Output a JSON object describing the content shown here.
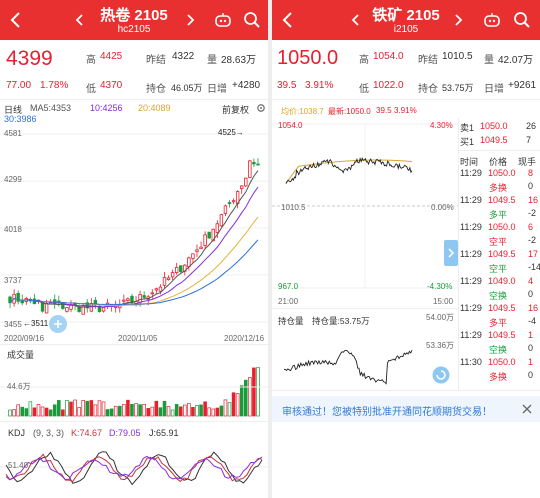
{
  "left": {
    "header": {
      "title": "热卷 2105",
      "code": "hc2105"
    },
    "quote": {
      "price": "4399",
      "change": "77.00",
      "change_pct": "1.78%",
      "high_label": "高",
      "high": "4425",
      "prev_settle_label": "昨结",
      "prev_settle": "4322",
      "volume_label": "量",
      "volume": "28.63万",
      "low_label": "低",
      "low": "4370",
      "oi_label": "持仓",
      "oi": "46.05万",
      "day_inc_label": "日增",
      "day_inc": "+4280"
    },
    "kline_bar": {
      "period": "日线",
      "ma5": "MA5:4353",
      "ma10": "10:4256",
      "ma20": "20:4089",
      "ma30": "30:3986",
      "adjust": "前复权"
    },
    "price_axis": [
      "4581",
      "4299",
      "4018",
      "3737",
      "3455"
    ],
    "annotations": {
      "high": "4525→",
      "low": "←3511"
    },
    "dates": [
      "2020/09/16",
      "2020/11/05",
      "2020/12/16"
    ],
    "volume": {
      "title": "成交量",
      "level": "44.6万"
    },
    "kdj": {
      "name": "KDJ",
      "params": "(9, 3, 3)",
      "k": "K:74.67",
      "d": "D:79.05",
      "j": "J:65.91",
      "level": "51.40"
    },
    "colors": {
      "up": "#e6202f",
      "down": "#1a9b3a",
      "ma5": "#555555",
      "ma10": "#8a2be2",
      "ma20": "#e5b43c",
      "ma30": "#2f6fdb"
    },
    "icons": [
      "back-icon",
      "prev-icon",
      "next-icon",
      "robot-icon",
      "search-icon",
      "settings-icon"
    ]
  },
  "right": {
    "header": {
      "title": "铁矿 2105",
      "code": "i2105"
    },
    "quote": {
      "price": "1050.0",
      "change": "39.5",
      "change_pct": "3.91%",
      "high_label": "高",
      "high": "1054.0",
      "prev_settle_label": "昨结",
      "prev_settle": "1010.5",
      "volume_label": "量",
      "volume": "42.07万",
      "low_label": "低",
      "low": "1022.0",
      "oi_label": "持仓",
      "oi": "53.75万",
      "day_inc_label": "日增",
      "day_inc": "+9261"
    },
    "intraday_bar": {
      "avg": "均价:1038.7",
      "latest": "最新:1050.0",
      "chg": "39.5",
      "pct": "3.91%"
    },
    "price_axis": {
      "top": "1054.0",
      "mid": "1010.5",
      "bottom": "967.0"
    },
    "pct_axis": {
      "top": "4.30%",
      "mid": "0.00%",
      "bottom": "-4.30%"
    },
    "time_axis": {
      "start": "21:00",
      "end": "15:00"
    },
    "oi_chart": {
      "label1": "持仓量",
      "label2": "持仓量:53.75万",
      "top": "54.00万",
      "bottom": "53.36万"
    },
    "order_book": [
      {
        "label": "卖1",
        "price": "1050.0",
        "qty": "26"
      },
      {
        "label": "买1",
        "price": "1049.5",
        "qty": "7"
      }
    ],
    "trades_header": {
      "time": "时间",
      "price": "价格",
      "volume": "现手"
    },
    "trades": [
      {
        "time": "11:29",
        "price": "1050.0",
        "vol": "8",
        "type": "多换",
        "change": "0",
        "price_color": "red",
        "type_color": "red"
      },
      {
        "time": "11:29",
        "price": "1049.5",
        "vol": "16",
        "type": "多平",
        "change": "-2",
        "price_color": "red",
        "type_color": "green"
      },
      {
        "time": "11:29",
        "price": "1050.0",
        "vol": "6",
        "type": "空平",
        "change": "-2",
        "price_color": "red",
        "type_color": "red"
      },
      {
        "time": "11:29",
        "price": "1049.5",
        "vol": "17",
        "type": "空平",
        "change": "-14",
        "price_color": "red",
        "type_color": "green"
      },
      {
        "time": "11:29",
        "price": "1049.0",
        "vol": "4",
        "type": "空换",
        "change": "0",
        "price_color": "red",
        "type_color": "green"
      },
      {
        "time": "11:29",
        "price": "1049.5",
        "vol": "16",
        "type": "多平",
        "change": "-4",
        "price_color": "red",
        "type_color": "red"
      },
      {
        "time": "11:29",
        "price": "1049.5",
        "vol": "1",
        "type": "空换",
        "change": "0",
        "price_color": "red",
        "type_color": "green"
      },
      {
        "time": "11:30",
        "price": "1050.0",
        "vol": "1",
        "type": "多换",
        "change": "0",
        "price_color": "red",
        "type_color": "red"
      }
    ],
    "notice": "审核通过！您被特别批准开通同花顺期货交易！",
    "icons": [
      "back-icon",
      "prev-icon",
      "next-icon",
      "robot-icon",
      "search-icon",
      "expand-icon",
      "close-icon",
      "refresh-icon"
    ]
  }
}
